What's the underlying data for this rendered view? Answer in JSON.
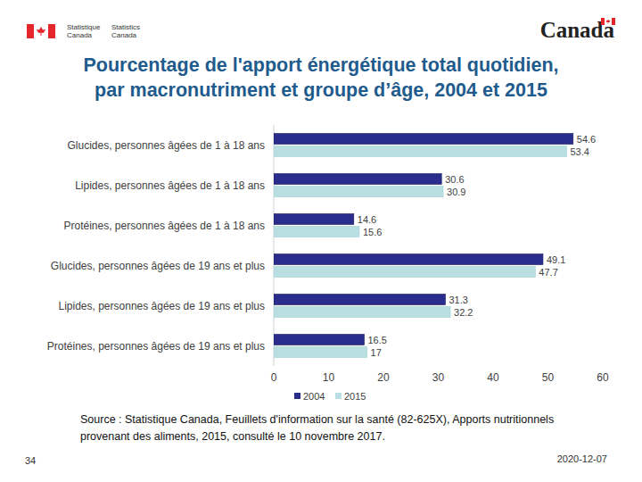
{
  "chart_data": {
    "type": "bar",
    "orientation": "horizontal",
    "title": "Pourcentage de l'apport énergétique total quotidien, par macronutriment et groupe d’âge, 2004 et 2015",
    "categories": [
      "Glucides, personnes âgées de 1 à 18 ans",
      "Lipides, personnes âgées de 1 à 18 ans",
      "Protéines, personnes âgées de 1 à 18 ans",
      "Glucides, personnes âgées de 19 ans et plus",
      "Lipides, personnes âgées de 19 ans et plus",
      "Protéines, personnes âgées de 19 ans et plus"
    ],
    "series": [
      {
        "name": "2004",
        "color": "#2b2d8c",
        "values": [
          54.6,
          30.6,
          14.6,
          49.1,
          31.3,
          16.5
        ]
      },
      {
        "name": "2015",
        "color": "#b9dfe3",
        "values": [
          53.4,
          30.9,
          15.6,
          47.7,
          32.2,
          17
        ]
      }
    ],
    "xlim": [
      0,
      60
    ],
    "xticks": [
      0,
      10,
      20,
      30,
      40,
      50,
      60
    ],
    "data_labels": true,
    "legend": "bottom",
    "grid": false
  },
  "page": {
    "header": {
      "agency_fr": "Statistique Canada",
      "agency_en": "Statistics Canada",
      "wordmark": "Canada"
    },
    "source": "Source : Statistique Canada, Feuillets d'information sur la santé (82-625X),  Apports nutritionnels provenant des aliments, 2015, consulté le 10 novembre 2017.",
    "page_number": 34,
    "date": "2020-12-07"
  }
}
